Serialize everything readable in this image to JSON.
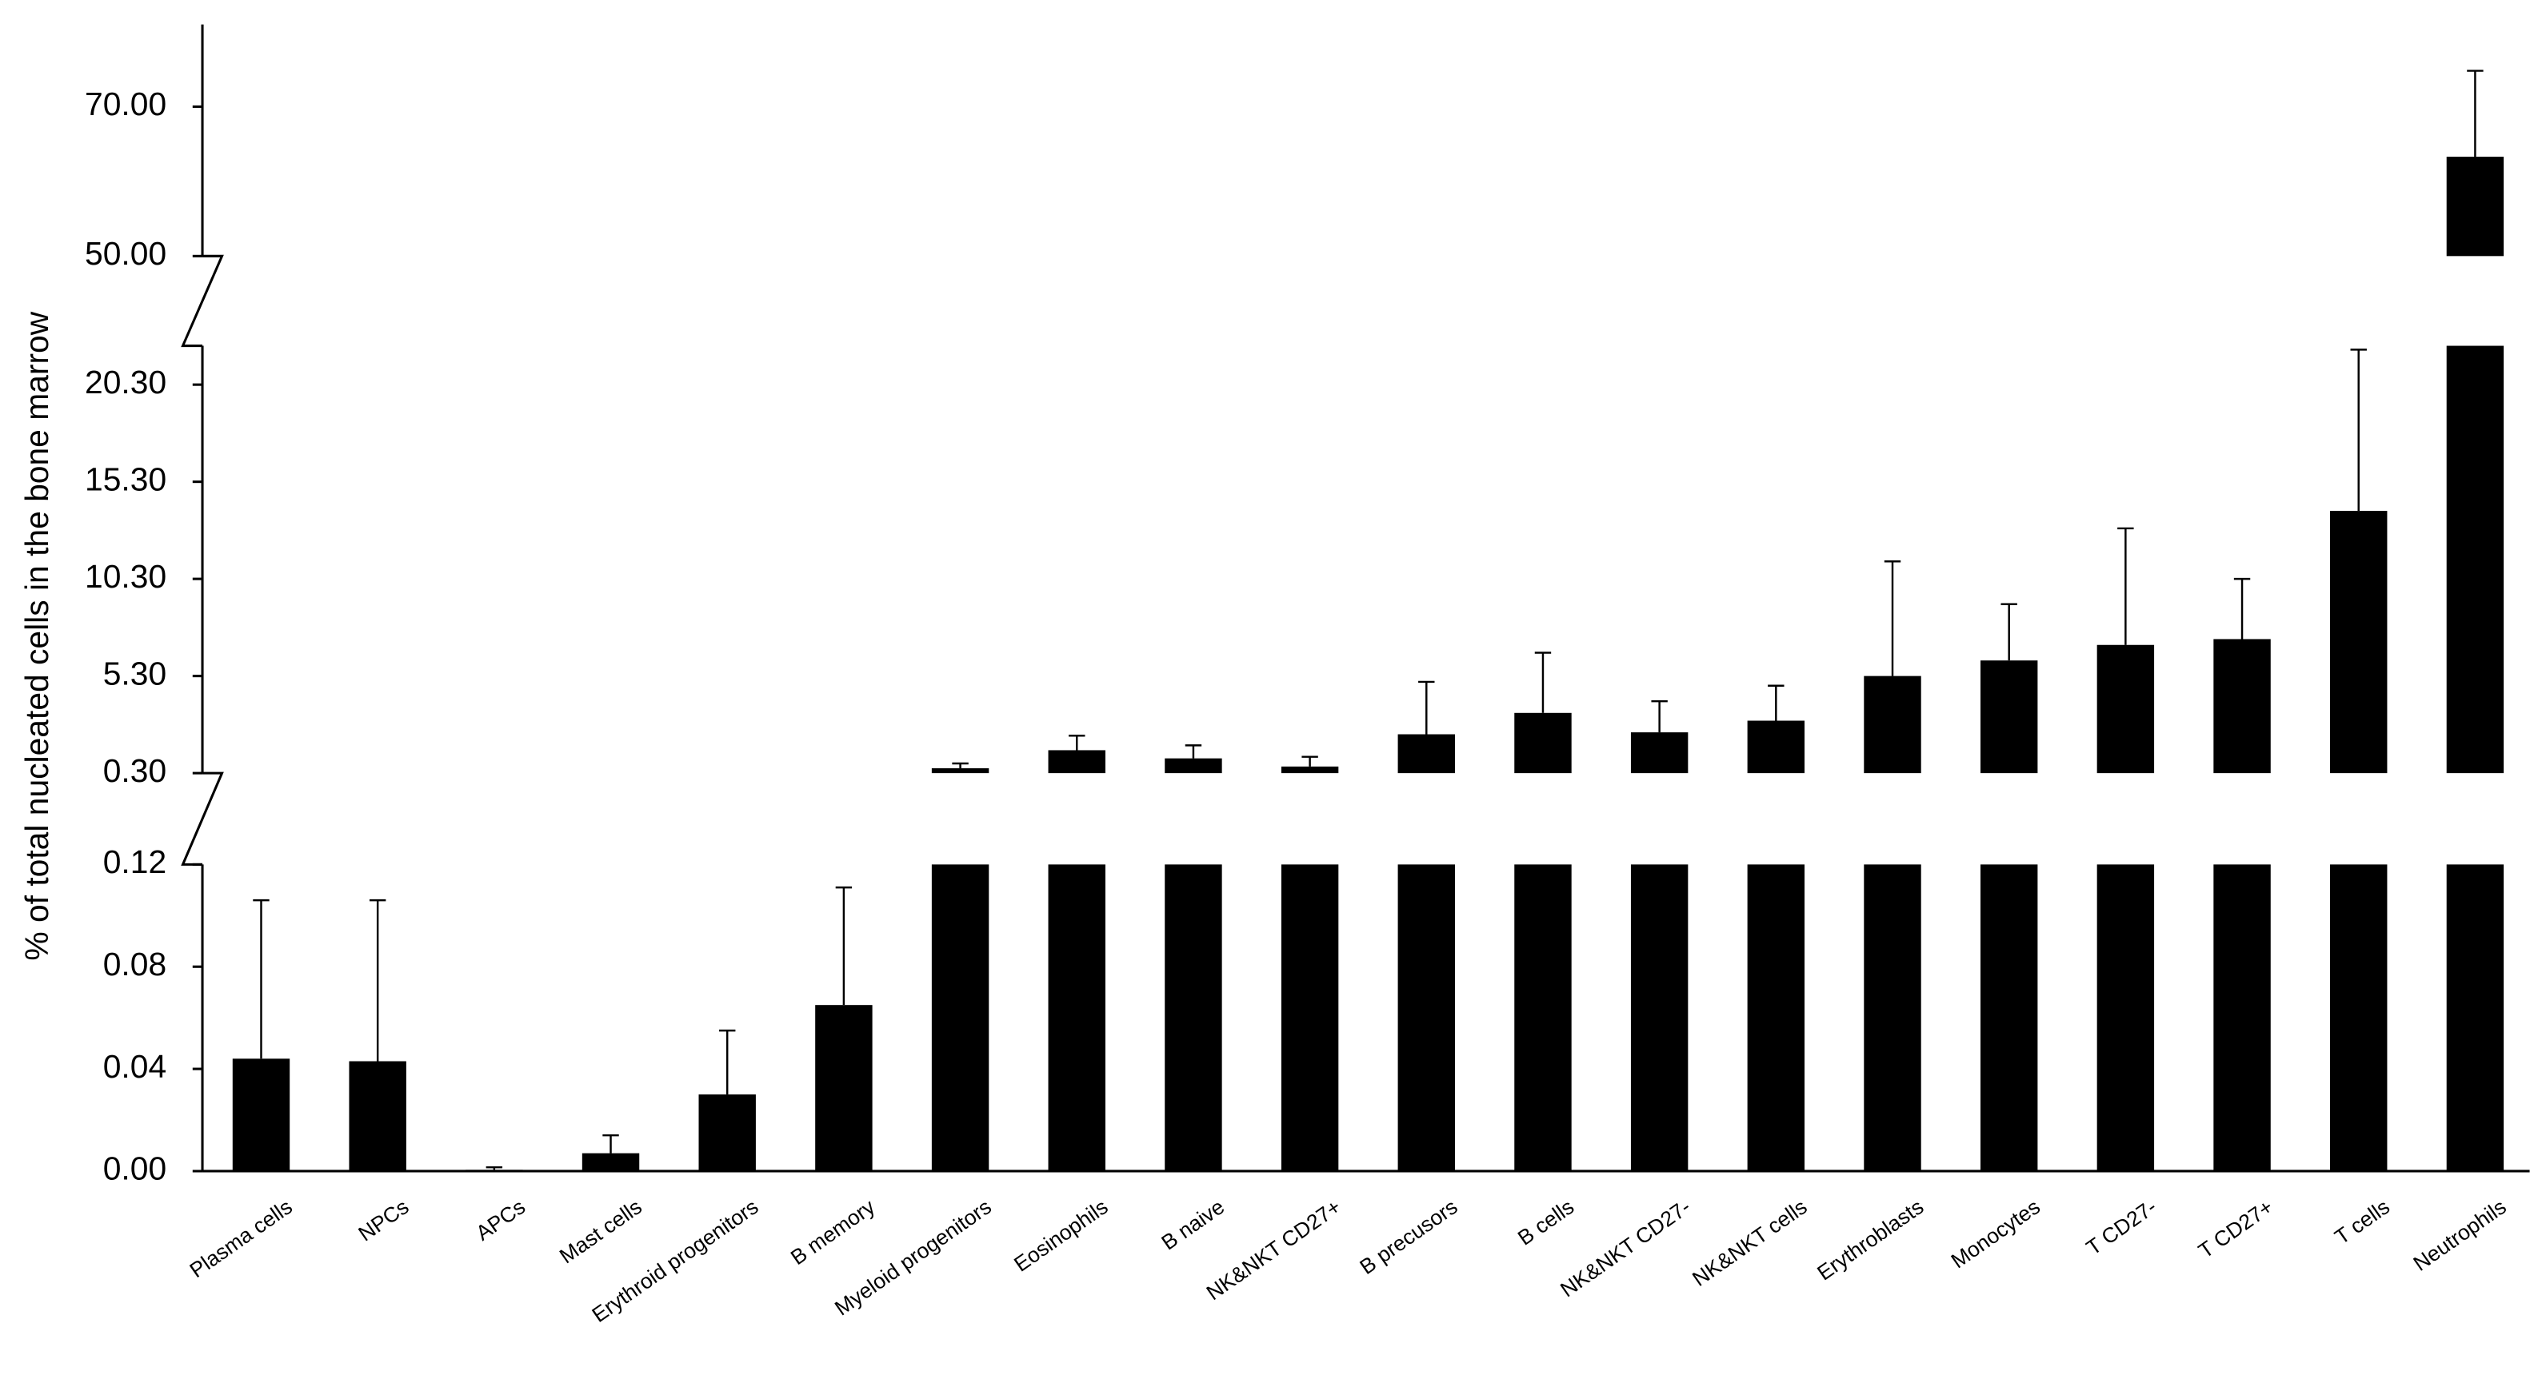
{
  "chart_data": {
    "type": "bar",
    "y_label": "% of total nucleated cells in the bone marrow",
    "categories": [
      "Plasma cells",
      "NPCs",
      "APCs",
      "Mast cells",
      "Erythroid progenitors",
      "B memory",
      "Myeloid progenitors",
      "Eosinophils",
      "B naive",
      "NK&NKT CD27+",
      "B precusors",
      "B cells",
      "NK&NKT CD27-",
      "NK&NKT cells",
      "Erythroblasts",
      "Monocytes",
      "T CD27-",
      "T CD27+",
      "T cells",
      "Neutrophils"
    ],
    "values": [
      0.044,
      0.043,
      0.0005,
      0.007,
      0.03,
      0.065,
      0.55,
      1.48,
      1.06,
      0.64,
      2.3,
      3.4,
      2.4,
      3.0,
      5.3,
      6.1,
      6.9,
      7.2,
      13.8,
      63.3
    ],
    "errors": [
      0.062,
      0.063,
      0.001,
      0.007,
      0.025,
      0.046,
      0.25,
      0.75,
      0.67,
      0.5,
      2.7,
      3.1,
      1.6,
      1.8,
      5.9,
      2.9,
      6.0,
      3.1,
      8.3,
      11.5
    ],
    "color": "#000000",
    "y_segments": [
      [
        0,
        0.12
      ],
      [
        0.3,
        22.3
      ],
      [
        50,
        81
      ]
    ],
    "yticks": [
      {
        "value": 0,
        "label": "0.00"
      },
      {
        "value": 0.04,
        "label": "0.04"
      },
      {
        "value": 0.08,
        "label": "0.08"
      },
      {
        "value": 0.12,
        "label": "0.12"
      },
      {
        "value": 0.3,
        "label": "0.30"
      },
      {
        "value": 5.3,
        "label": "5.30"
      },
      {
        "value": 10.3,
        "label": "10.30"
      },
      {
        "value": 15.3,
        "label": "15.30"
      },
      {
        "value": 20.3,
        "label": "20.30"
      },
      {
        "value": 50,
        "label": "50.00"
      },
      {
        "value": 70,
        "label": "70.00"
      }
    ]
  }
}
